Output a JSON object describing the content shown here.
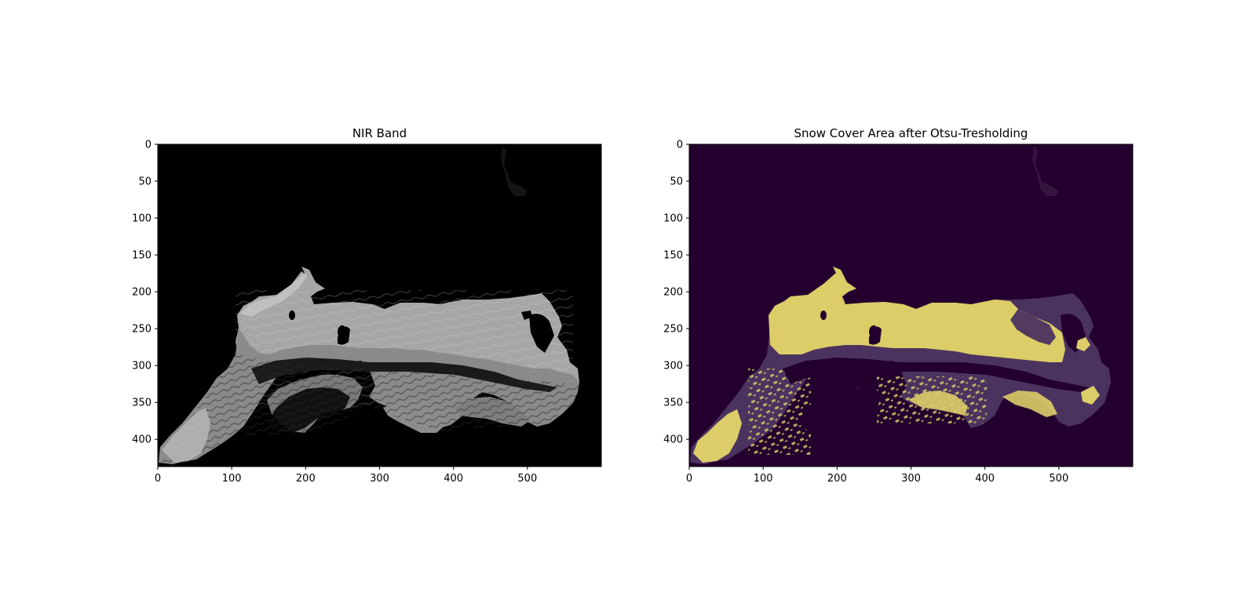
{
  "chart_data": [
    {
      "type": "image",
      "title": "NIR Band",
      "colormap": "gray",
      "x_ticks": [
        0,
        100,
        200,
        300,
        400,
        500
      ],
      "y_ticks": [
        0,
        50,
        100,
        150,
        200,
        250,
        300,
        350,
        400
      ],
      "xlim": [
        0,
        600
      ],
      "ylim": [
        437,
        0
      ],
      "colors": {
        "background": "#000000",
        "surface": "#a8a8a8",
        "shadow": "#3a3a3a",
        "highlight": "#cfcfcf"
      }
    },
    {
      "type": "image",
      "title": "Snow Cover Area after Otsu-Tresholding",
      "colormap": "viridis",
      "x_ticks": [
        0,
        100,
        200,
        300,
        400,
        500
      ],
      "y_ticks": [
        0,
        50,
        100,
        150,
        200,
        250,
        300,
        350,
        400
      ],
      "xlim": [
        0,
        600
      ],
      "ylim": [
        437,
        0
      ],
      "colors": {
        "background": "#24002e",
        "terrain": "#4b3360",
        "snow": "#dccd68"
      }
    }
  ]
}
